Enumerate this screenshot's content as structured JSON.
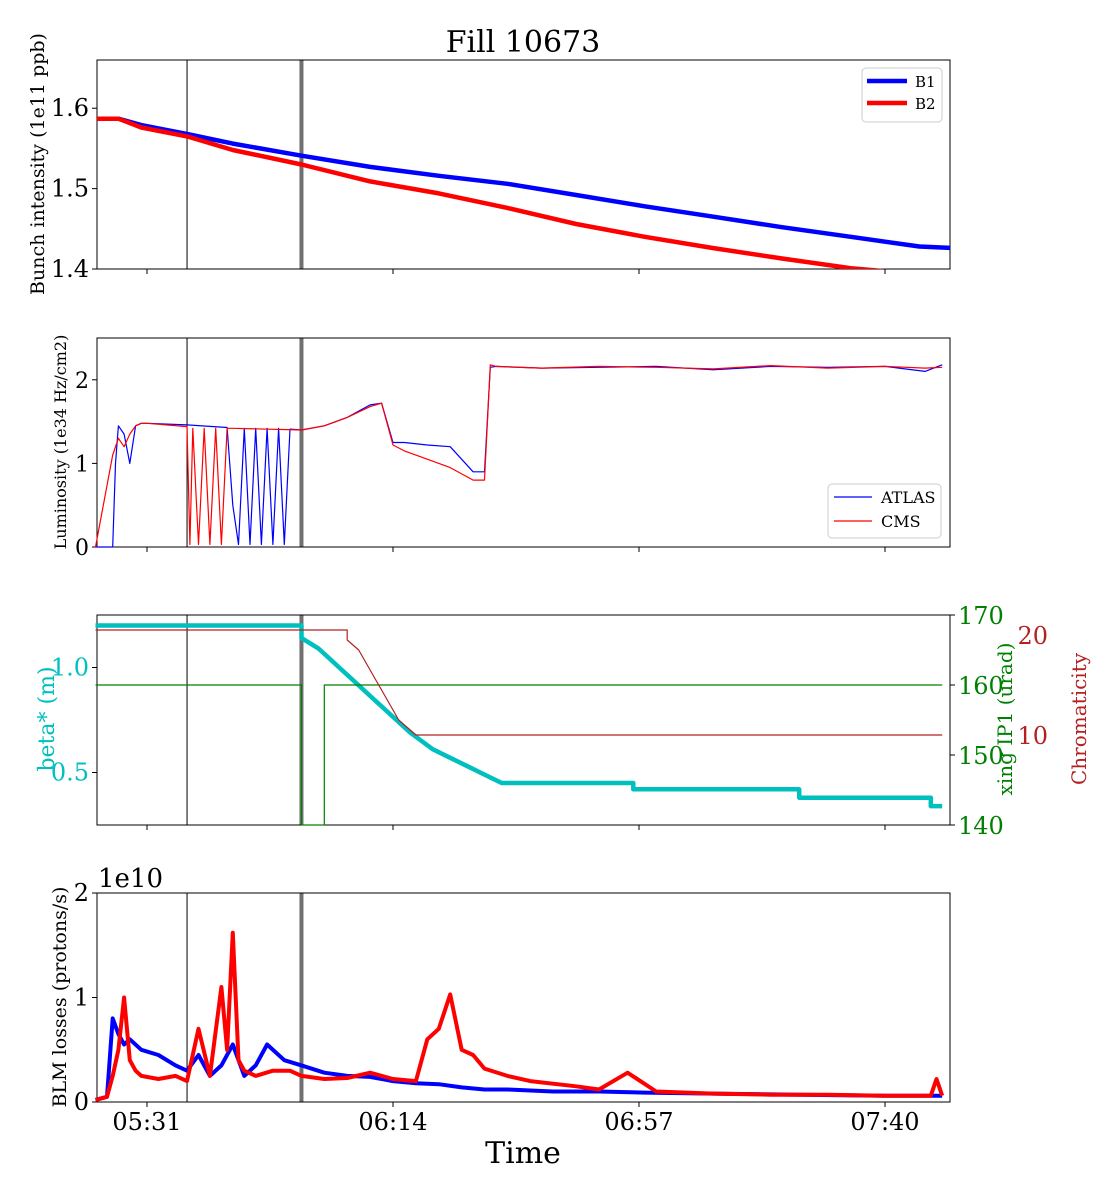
{
  "figure": {
    "title": "Fill 10673",
    "xlabel": "Time",
    "xticks": [
      "05:31",
      "06:14",
      "06:57",
      "07:40"
    ],
    "markers": {
      "thin_line_time": "05:38",
      "thick_line_time": "05:58"
    }
  },
  "colors": {
    "b1": "#0000ff",
    "b2": "#ff0000",
    "beta": "#00bfbf",
    "xing": "#008000",
    "chroma": "#b22222",
    "marker_thin": "#000000",
    "marker_thick": "#707070"
  },
  "chart_data": [
    {
      "type": "line",
      "ylabel": "Bunch intensity (1e11 ppb)",
      "ylim": [
        1.4,
        1.66
      ],
      "yticks": [
        "1.4",
        "1.5",
        "1.6"
      ],
      "legend": {
        "placement": "top-right",
        "entries": [
          "B1",
          "B2"
        ]
      },
      "series": [
        {
          "name": "B1",
          "x": [
            "05:22",
            "05:26",
            "05:30",
            "05:38",
            "05:46",
            "05:58",
            "06:10",
            "06:22",
            "06:34",
            "06:46",
            "06:58",
            "07:10",
            "07:22",
            "07:34",
            "07:46",
            "07:52"
          ],
          "values": [
            1.587,
            1.587,
            1.579,
            1.568,
            1.556,
            1.541,
            1.527,
            1.516,
            1.506,
            1.492,
            1.478,
            1.465,
            1.452,
            1.44,
            1.428,
            1.426
          ]
        },
        {
          "name": "B2",
          "x": [
            "05:22",
            "05:26",
            "05:30",
            "05:38",
            "05:46",
            "05:58",
            "06:10",
            "06:22",
            "06:34",
            "06:46",
            "06:58",
            "07:10",
            "07:22",
            "07:34",
            "07:42"
          ],
          "values": [
            1.587,
            1.587,
            1.576,
            1.565,
            1.548,
            1.53,
            1.509,
            1.494,
            1.476,
            1.456,
            1.44,
            1.426,
            1.413,
            1.401,
            1.396
          ]
        }
      ]
    },
    {
      "type": "line",
      "ylabel": "Luminosity (1e34 Hz/cm2)",
      "ylim": [
        0,
        2.5
      ],
      "yticks": [
        "0",
        "1",
        "2"
      ],
      "legend": {
        "placement": "bottom-right",
        "entries": [
          "ATLAS",
          "CMS"
        ]
      },
      "series": [
        {
          "name": "ATLAS",
          "x": [
            "05:22",
            "05:25",
            "05:25.5",
            "05:26",
            "05:27",
            "05:28",
            "05:29",
            "05:30",
            "05:31",
            "05:38",
            "05:45",
            "05:46",
            "05:47",
            "05:48",
            "05:49",
            "05:50",
            "05:51",
            "05:52",
            "05:53",
            "05:54",
            "05:55",
            "05:56",
            "05:58",
            "06:02",
            "06:06",
            "06:10",
            "06:12",
            "06:14",
            "06:16",
            "06:20",
            "06:24",
            "06:28",
            "06:30",
            "06:31",
            "06:32",
            "06:40",
            "06:50",
            "07:00",
            "07:10",
            "07:20",
            "07:30",
            "07:40",
            "07:47",
            "07:50"
          ],
          "values": [
            0,
            0,
            1.0,
            1.45,
            1.35,
            1.0,
            1.45,
            1.48,
            1.48,
            1.46,
            1.43,
            0.5,
            0.03,
            1.42,
            0.03,
            1.42,
            0.03,
            1.42,
            0.03,
            1.42,
            0.03,
            1.41,
            1.4,
            1.45,
            1.55,
            1.7,
            1.72,
            1.25,
            1.25,
            1.22,
            1.2,
            0.9,
            0.9,
            2.15,
            2.16,
            2.14,
            2.15,
            2.16,
            2.12,
            2.16,
            2.15,
            2.16,
            2.1,
            2.18
          ]
        },
        {
          "name": "CMS",
          "x": [
            "05:22",
            "05:25",
            "05:26",
            "05:27",
            "05:28",
            "05:29",
            "05:30",
            "05:31",
            "05:38",
            "05:38.5",
            "05:39",
            "05:40",
            "05:41",
            "05:42",
            "05:43",
            "05:44",
            "05:45",
            "05:46",
            "05:58",
            "06:02",
            "06:06",
            "06:10",
            "06:12",
            "06:14",
            "06:16",
            "06:20",
            "06:24",
            "06:28",
            "06:30",
            "06:31",
            "06:32",
            "06:40",
            "06:50",
            "07:00",
            "07:10",
            "07:20",
            "07:30",
            "07:40",
            "07:47",
            "07:50"
          ],
          "values": [
            0,
            1.1,
            1.3,
            1.2,
            1.35,
            1.45,
            1.48,
            1.48,
            1.44,
            0.03,
            1.42,
            0.03,
            1.42,
            0.03,
            1.42,
            0.03,
            1.42,
            1.42,
            1.4,
            1.45,
            1.55,
            1.68,
            1.72,
            1.22,
            1.15,
            1.05,
            0.95,
            0.8,
            0.8,
            2.18,
            2.16,
            2.14,
            2.16,
            2.15,
            2.13,
            2.17,
            2.14,
            2.16,
            2.14,
            2.15
          ]
        }
      ]
    },
    {
      "type": "line",
      "ylabel": "beta* (m)",
      "ylim": [
        0.25,
        1.25
      ],
      "yticks": [
        "0.5",
        "1.0"
      ],
      "right_axes": [
        {
          "label": "xing IP1 (urad)",
          "ylim": [
            140,
            170
          ],
          "yticks": [
            "140",
            "150",
            "160",
            "170"
          ]
        },
        {
          "label": "Chromaticity",
          "ylim": [
            1,
            22
          ],
          "yticks": [
            "10",
            "20"
          ]
        }
      ],
      "series": [
        {
          "axis": "beta",
          "x": [
            "05:22",
            "05:58",
            "05:58",
            "06:01",
            "06:03",
            "06:05",
            "06:07",
            "06:09",
            "06:11",
            "06:13",
            "06:15",
            "06:17",
            "06:19",
            "06:21",
            "06:24",
            "06:27",
            "06:30",
            "06:33",
            "06:56",
            "06:56",
            "07:25",
            "07:25",
            "07:48",
            "07:48",
            "07:50"
          ],
          "values": [
            1.2,
            1.2,
            1.14,
            1.09,
            1.04,
            0.99,
            0.94,
            0.89,
            0.84,
            0.79,
            0.74,
            0.69,
            0.65,
            0.61,
            0.57,
            0.53,
            0.49,
            0.45,
            0.45,
            0.42,
            0.42,
            0.38,
            0.38,
            0.34,
            0.34
          ]
        },
        {
          "axis": "xing",
          "x": [
            "05:22",
            "05:58",
            "05:58",
            "06:00",
            "06:00",
            "06:02",
            "06:02",
            "07:50"
          ],
          "values": [
            160,
            160,
            140,
            140,
            140,
            140,
            160,
            160
          ]
        },
        {
          "axis": "chroma",
          "x": [
            "05:22",
            "06:06",
            "06:06",
            "06:08",
            "06:09",
            "06:10",
            "06:11",
            "06:12",
            "06:13",
            "06:14",
            "06:15",
            "06:16",
            "06:17",
            "06:18",
            "07:50"
          ],
          "values": [
            20.5,
            20.5,
            19.5,
            18.5,
            17.5,
            16.5,
            15.5,
            14.5,
            13.5,
            12.5,
            11.5,
            11,
            10.5,
            10,
            10
          ]
        }
      ]
    },
    {
      "type": "line",
      "ylabel": "BLM losses (protons/s)",
      "y_multiplier": "1e10",
      "ylim": [
        0,
        2
      ],
      "yticks": [
        "0",
        "1",
        "2"
      ],
      "series": [
        {
          "name": "B1",
          "x": [
            "05:22",
            "05:24",
            "05:25",
            "05:26",
            "05:27",
            "05:28",
            "05:30",
            "05:33",
            "05:36",
            "05:38",
            "05:40",
            "05:42",
            "05:44",
            "05:46",
            "05:48",
            "05:50",
            "05:52",
            "05:55",
            "05:58",
            "06:02",
            "06:06",
            "06:10",
            "06:14",
            "06:18",
            "06:22",
            "06:26",
            "06:30",
            "06:34",
            "06:38",
            "06:42",
            "06:50",
            "06:58",
            "07:10",
            "07:25",
            "07:40",
            "07:50"
          ],
          "values": [
            0.02,
            0.05,
            0.8,
            0.65,
            0.55,
            0.6,
            0.5,
            0.45,
            0.35,
            0.3,
            0.45,
            0.25,
            0.35,
            0.55,
            0.25,
            0.35,
            0.55,
            0.4,
            0.35,
            0.28,
            0.25,
            0.24,
            0.2,
            0.18,
            0.17,
            0.14,
            0.12,
            0.12,
            0.11,
            0.1,
            0.1,
            0.09,
            0.08,
            0.07,
            0.06,
            0.06
          ]
        },
        {
          "name": "B2",
          "x": [
            "05:22",
            "05:24",
            "05:25",
            "05:26",
            "05:27",
            "05:28",
            "05:29",
            "05:30",
            "05:33",
            "05:36",
            "05:38",
            "05:40",
            "05:42",
            "05:44",
            "05:45",
            "05:46",
            "05:47",
            "05:48",
            "05:50",
            "05:53",
            "05:56",
            "05:58",
            "06:02",
            "06:06",
            "06:10",
            "06:14",
            "06:18",
            "06:20",
            "06:22",
            "06:24",
            "06:26",
            "06:28",
            "06:30",
            "06:34",
            "06:38",
            "06:46",
            "06:50",
            "06:55",
            "07:00",
            "07:10",
            "07:20",
            "07:30",
            "07:40",
            "07:48",
            "07:49",
            "07:50"
          ],
          "values": [
            0.02,
            0.05,
            0.25,
            0.5,
            1.0,
            0.4,
            0.3,
            0.25,
            0.22,
            0.25,
            0.2,
            0.7,
            0.25,
            1.1,
            0.5,
            1.62,
            0.4,
            0.3,
            0.25,
            0.3,
            0.3,
            0.25,
            0.22,
            0.23,
            0.28,
            0.22,
            0.2,
            0.6,
            0.7,
            1.03,
            0.5,
            0.45,
            0.32,
            0.25,
            0.2,
            0.15,
            0.12,
            0.28,
            0.1,
            0.08,
            0.07,
            0.07,
            0.06,
            0.06,
            0.22,
            0.06
          ]
        }
      ]
    }
  ]
}
